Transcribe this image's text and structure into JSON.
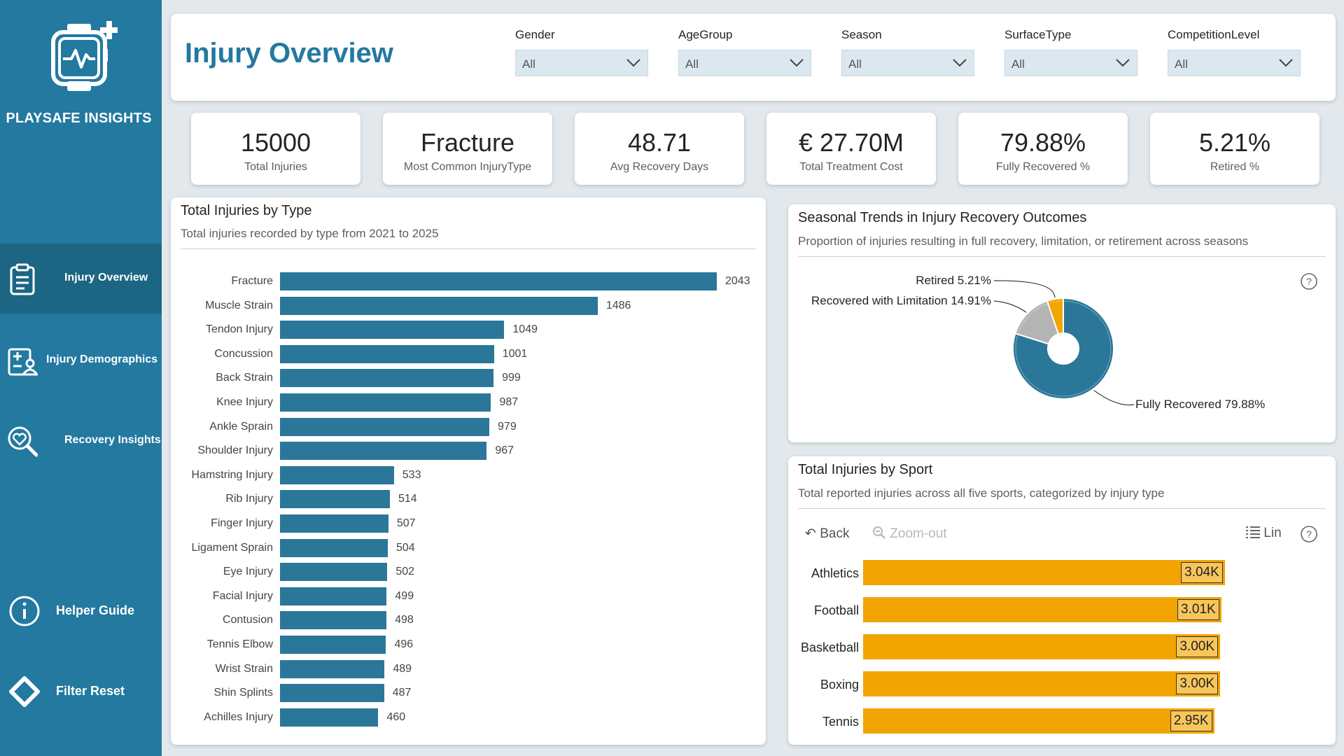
{
  "app": {
    "brand_name": "PLAYSAFE INSIGHTS",
    "page_title": "Injury Overview"
  },
  "colors": {
    "sidebar": "#2379a0",
    "accent_blue": "#2a7799",
    "accent_orange": "#f2a500",
    "limitation_gray": "#b4b4b4"
  },
  "nav": {
    "items": [
      {
        "label": "Injury Overview",
        "icon": "clipboard-icon",
        "active": true
      },
      {
        "label": "Injury Demographics",
        "icon": "user-demographics-icon",
        "active": false
      },
      {
        "label": "Recovery Insights",
        "icon": "heart-search-icon",
        "active": false
      }
    ],
    "helper_guide": "Helper Guide",
    "filter_reset": "Filter Reset"
  },
  "filters": [
    {
      "label": "Gender",
      "value": "All"
    },
    {
      "label": "AgeGroup",
      "value": "All"
    },
    {
      "label": "Season",
      "value": "All"
    },
    {
      "label": "SurfaceType",
      "value": "All"
    },
    {
      "label": "CompetitionLevel",
      "value": "All"
    }
  ],
  "kpis": [
    {
      "value": "15000",
      "label": "Total Injuries"
    },
    {
      "value": "Fracture",
      "label": "Most Common InjuryType"
    },
    {
      "value": "48.71",
      "label": "Avg Recovery Days"
    },
    {
      "value": "€ 27.70M",
      "label": "Total Treatment Cost"
    },
    {
      "value": "79.88%",
      "label": "Fully Recovered %"
    },
    {
      "value": "5.21%",
      "label": "Retired %"
    }
  ],
  "type_chart": {
    "title": "Total Injuries by Type",
    "subtitle": "Total injuries recorded by type from 2021 to 2025"
  },
  "trend_chart": {
    "title": "Seasonal Trends in Injury Recovery Outcomes",
    "subtitle": "Proportion of injuries resulting in full recovery, limitation, or retirement across seasons"
  },
  "sport_chart": {
    "title": "Total Injuries by Sport",
    "subtitle": "Total reported injuries across all five sports, categorized by injury type",
    "toolbar": {
      "back": "Back",
      "zoom_out": "Zoom-out",
      "lin": "Lin"
    }
  },
  "chart_data": [
    {
      "type": "bar",
      "orientation": "horizontal",
      "title": "Total Injuries by Type",
      "categories": [
        "Fracture",
        "Muscle Strain",
        "Tendon Injury",
        "Concussion",
        "Back Strain",
        "Knee Injury",
        "Ankle Sprain",
        "Shoulder Injury",
        "Hamstring Injury",
        "Rib Injury",
        "Finger Injury",
        "Ligament Sprain",
        "Eye Injury",
        "Facial Injury",
        "Contusion",
        "Tennis Elbow",
        "Wrist Strain",
        "Shin Splints",
        "Achilles Injury"
      ],
      "values": [
        2043,
        1486,
        1049,
        1001,
        999,
        987,
        979,
        967,
        533,
        514,
        507,
        504,
        502,
        499,
        498,
        496,
        489,
        487,
        460
      ],
      "xlim": [
        0,
        2043
      ]
    },
    {
      "type": "pie",
      "donut": true,
      "title": "Seasonal Trends in Injury Recovery Outcomes",
      "slices": [
        {
          "name": "Fully Recovered",
          "value": 79.88,
          "label": "Fully Recovered 79.88%",
          "color": "#2a7799"
        },
        {
          "name": "Recovered with Limitation",
          "value": 14.91,
          "label": "Recovered with Limitation 14.91%",
          "color": "#b4b4b4"
        },
        {
          "name": "Retired",
          "value": 5.21,
          "label": "Retired 5.21%",
          "color": "#f2a500"
        }
      ]
    },
    {
      "type": "bar",
      "orientation": "horizontal",
      "title": "Total Injuries by Sport",
      "categories": [
        "Athletics",
        "Football",
        "Basketball",
        "Boxing",
        "Tennis"
      ],
      "values": [
        3040,
        3010,
        3000,
        3000,
        2950
      ],
      "value_labels": [
        "3.04K",
        "3.01K",
        "3.00K",
        "3.00K",
        "2.95K"
      ],
      "xlim": [
        0,
        4000
      ]
    }
  ]
}
